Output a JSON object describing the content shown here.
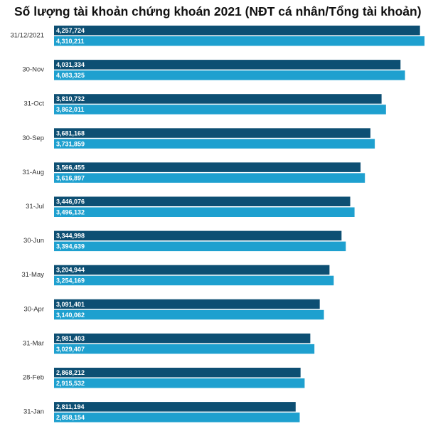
{
  "chart_data": {
    "type": "bar",
    "orientation": "horizontal",
    "title": "Số lượng tài khoản chứng khoán 2021 (NĐT cá nhân/Tổng tài khoản)",
    "xlabel": "",
    "ylabel": "",
    "categories": [
      "31/12/2021",
      "30-Nov",
      "31-Oct",
      "30-Sep",
      "31-Aug",
      "31-Jul",
      "30-Jun",
      "31-May",
      "30-Apr",
      "31-Mar",
      "28-Feb",
      "31-Jan"
    ],
    "series": [
      {
        "color": "#0d4f73",
        "values": [
          4257724,
          4031334,
          3810732,
          3681168,
          3566455,
          3446076,
          3344998,
          3204944,
          3091401,
          2981403,
          2868212,
          2811194
        ],
        "labels": [
          "4,257,724",
          "4,031,334",
          "3,810,732",
          "3,681,168",
          "3,566,455",
          "3,446,076",
          "3,344,998",
          "3,204,944",
          "3,091,401",
          "2,981,403",
          "2,868,212",
          "2,811,194"
        ]
      },
      {
        "color": "#1ea0cf",
        "values": [
          4310211,
          4083325,
          3862011,
          3731859,
          3616897,
          3496132,
          3394639,
          3254169,
          3140062,
          3029407,
          2915532,
          2858154
        ],
        "labels": [
          "4,310,211",
          "4,083,325",
          "3,862,011",
          "3,731,859",
          "3,616,897",
          "3,496,132",
          "3,394,639",
          "3,254,169",
          "3,140,062",
          "3,029,407",
          "2,915,532",
          "2,858,154"
        ]
      }
    ],
    "grid": false,
    "legend": "none"
  }
}
